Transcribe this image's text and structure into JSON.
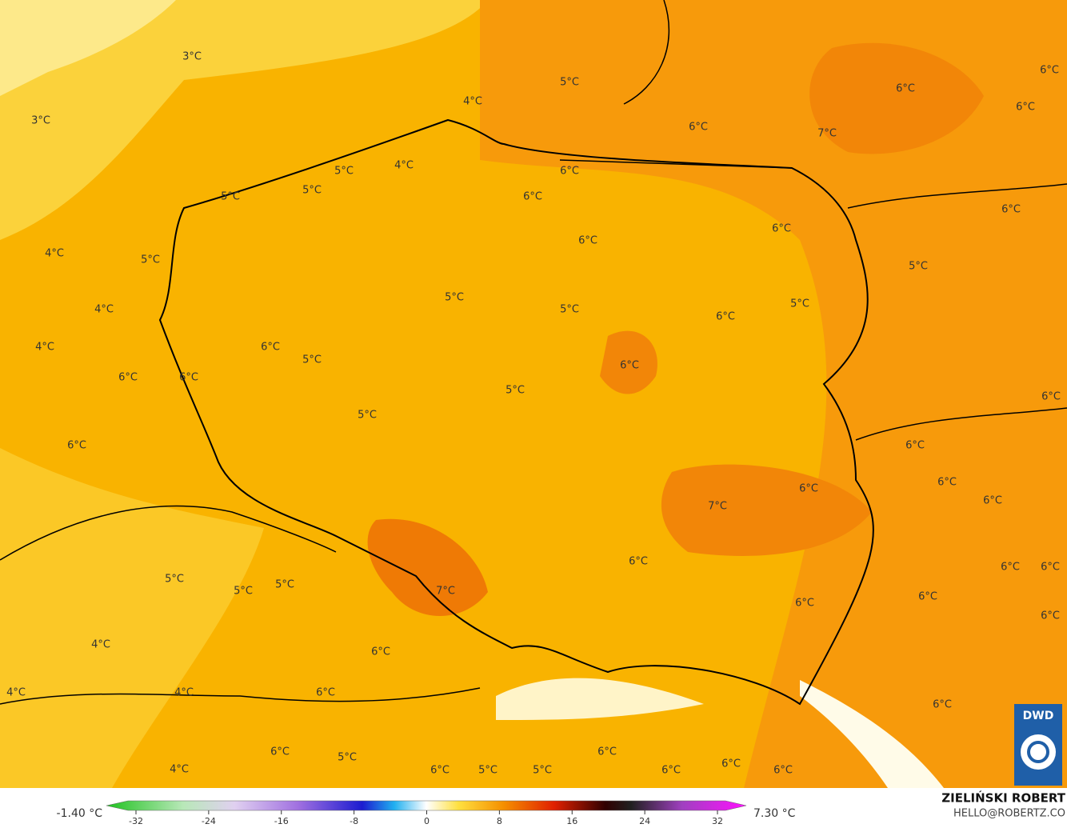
{
  "map_labels": [
    "3°C",
    "3°C",
    "5°C",
    "4°C",
    "6°C",
    "6°C",
    "6°C",
    "6°C",
    "7°C",
    "5°C",
    "4°C",
    "6°C",
    "5°C",
    "5°C",
    "6°C",
    "6°C",
    "6°C",
    "6°C",
    "4°C",
    "5°C",
    "5°C",
    "5°C",
    "4°C",
    "5°C",
    "5°C",
    "6°C",
    "4°C",
    "6°C",
    "5°C",
    "6°C",
    "6°C",
    "6°C",
    "5°C",
    "6°C",
    "5°C",
    "6°C",
    "6°C",
    "6°C",
    "6°C",
    "7°C",
    "6°C",
    "6°C",
    "6°C",
    "6°C",
    "5°C",
    "5°C",
    "5°C",
    "7°C",
    "6°C",
    "6°C",
    "6°C",
    "4°C",
    "6°C",
    "4°C",
    "4°C",
    "6°C",
    "6°C",
    "6°C",
    "5°C",
    "6°C",
    "4°C",
    "6°C",
    "5°C",
    "5°C",
    "6°C",
    "6°C",
    "6°C"
  ],
  "colorbar": {
    "min_label": "-1.40 °C",
    "max_label": "7.30 °C",
    "range": [
      -32,
      32
    ],
    "ticks": [
      -32,
      -24,
      -16,
      -8,
      0,
      8,
      16,
      24,
      32
    ]
  },
  "logo": "DWD",
  "author": "ZIELIŃSKI ROBERT",
  "contact": "HELLO@ROBERTZ.CO"
}
